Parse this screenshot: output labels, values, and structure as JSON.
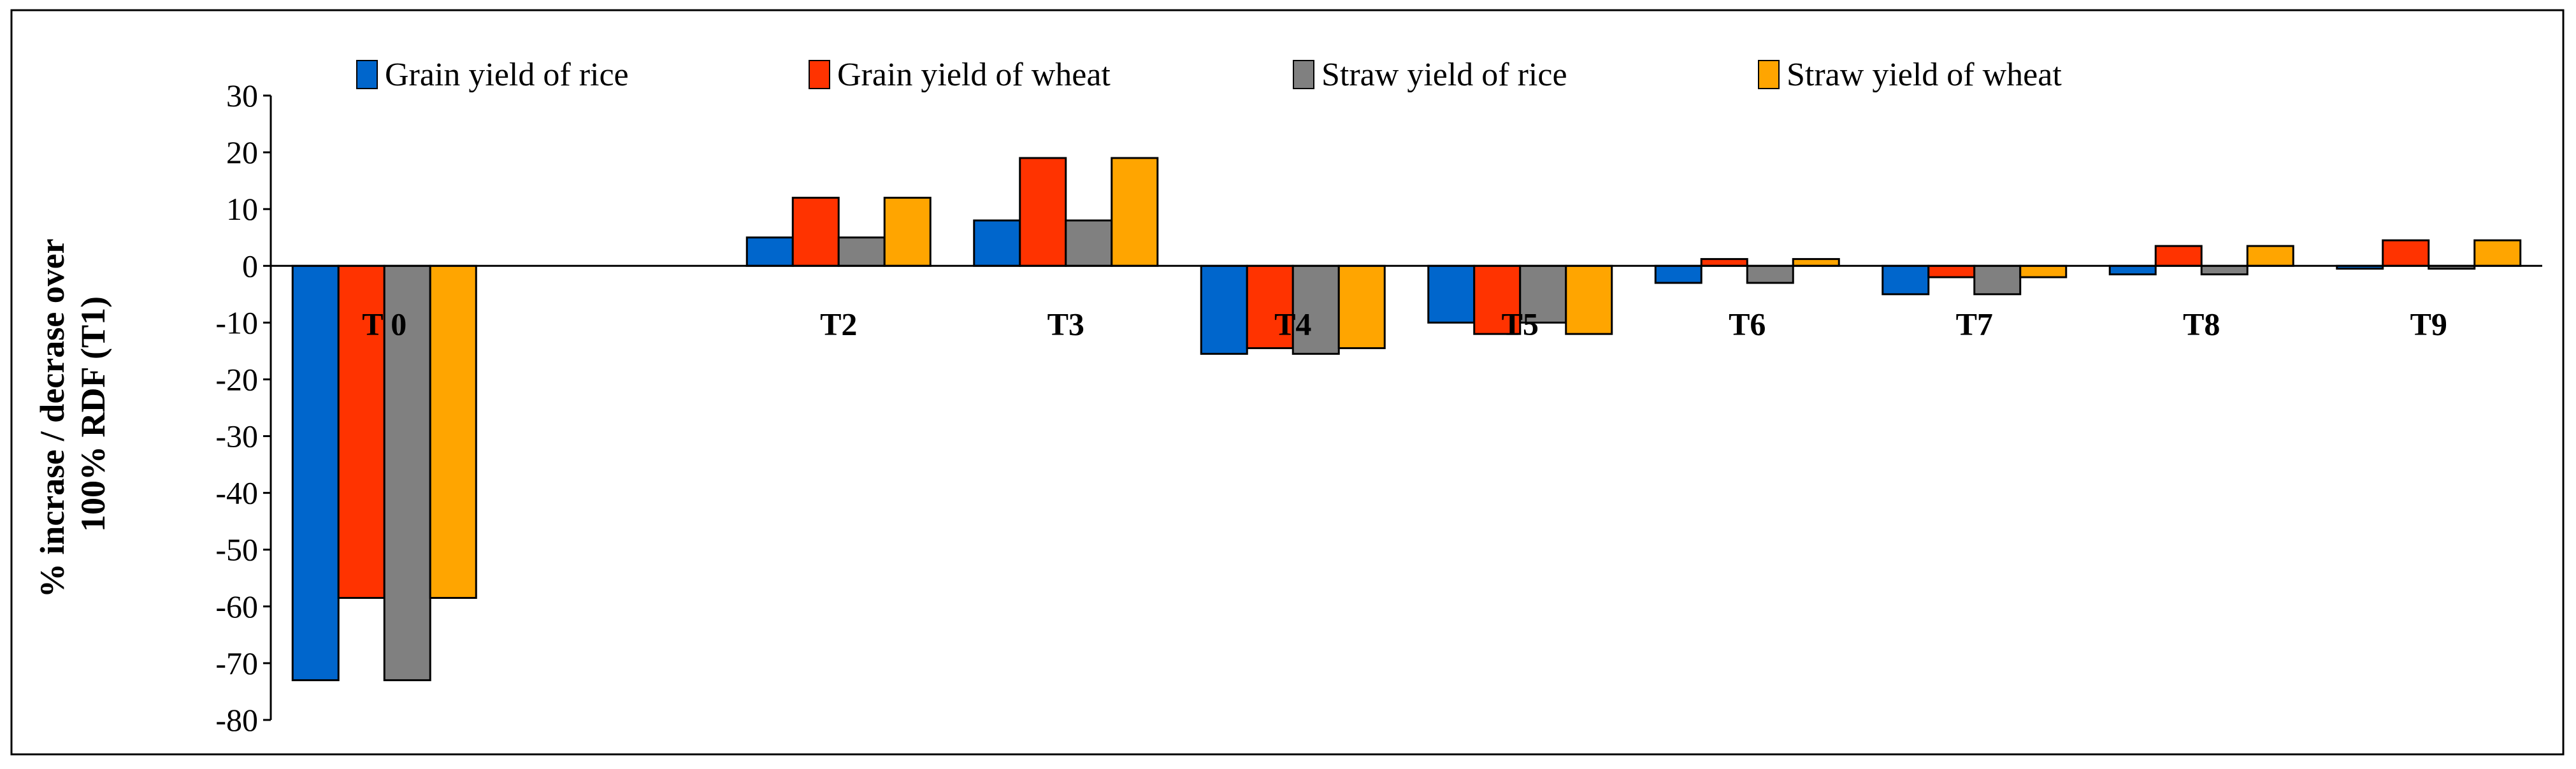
{
  "chart_data": {
    "type": "bar",
    "title": "",
    "xlabel": "",
    "ylabel_lines": [
      "% incrase / decrase over",
      "100% RDF (T1)"
    ],
    "ylim": [
      -80,
      30
    ],
    "yticks": [
      30,
      20,
      10,
      0,
      -10,
      -20,
      -30,
      -40,
      -50,
      -60,
      -70,
      -80
    ],
    "ytick_labels": [
      "30",
      "20",
      "10",
      "0",
      "-10",
      "-20",
      "-30",
      "-40",
      "-50",
      "-60",
      "-70",
      "-80"
    ],
    "grid": false,
    "legend_position": "top",
    "categories": [
      "T 0",
      "",
      "T2",
      "T3",
      "T4",
      "T5",
      "T6",
      "T7",
      "T8",
      "T9"
    ],
    "series": [
      {
        "name": "Grain yield of rice",
        "color": "#0066CC",
        "values": [
          -73,
          0,
          5,
          8,
          -15.5,
          -10,
          -3,
          -5,
          -1.5,
          -0.5
        ]
      },
      {
        "name": "Grain yield of wheat",
        "color": "#FF3300",
        "values": [
          -58.5,
          0,
          12,
          19,
          -14.5,
          -12,
          1.2,
          -2,
          3.5,
          4.5
        ]
      },
      {
        "name": "Straw yield of rice",
        "color": "#808080",
        "values": [
          -73,
          0,
          5,
          8,
          -15.5,
          -10,
          -3,
          -5,
          -1.5,
          -0.5
        ]
      },
      {
        "name": "Straw yield of wheat",
        "color": "#FFA500",
        "values": [
          -58.5,
          0,
          12,
          19,
          -14.5,
          -12,
          1.2,
          -2,
          3.5,
          4.5
        ]
      }
    ]
  }
}
